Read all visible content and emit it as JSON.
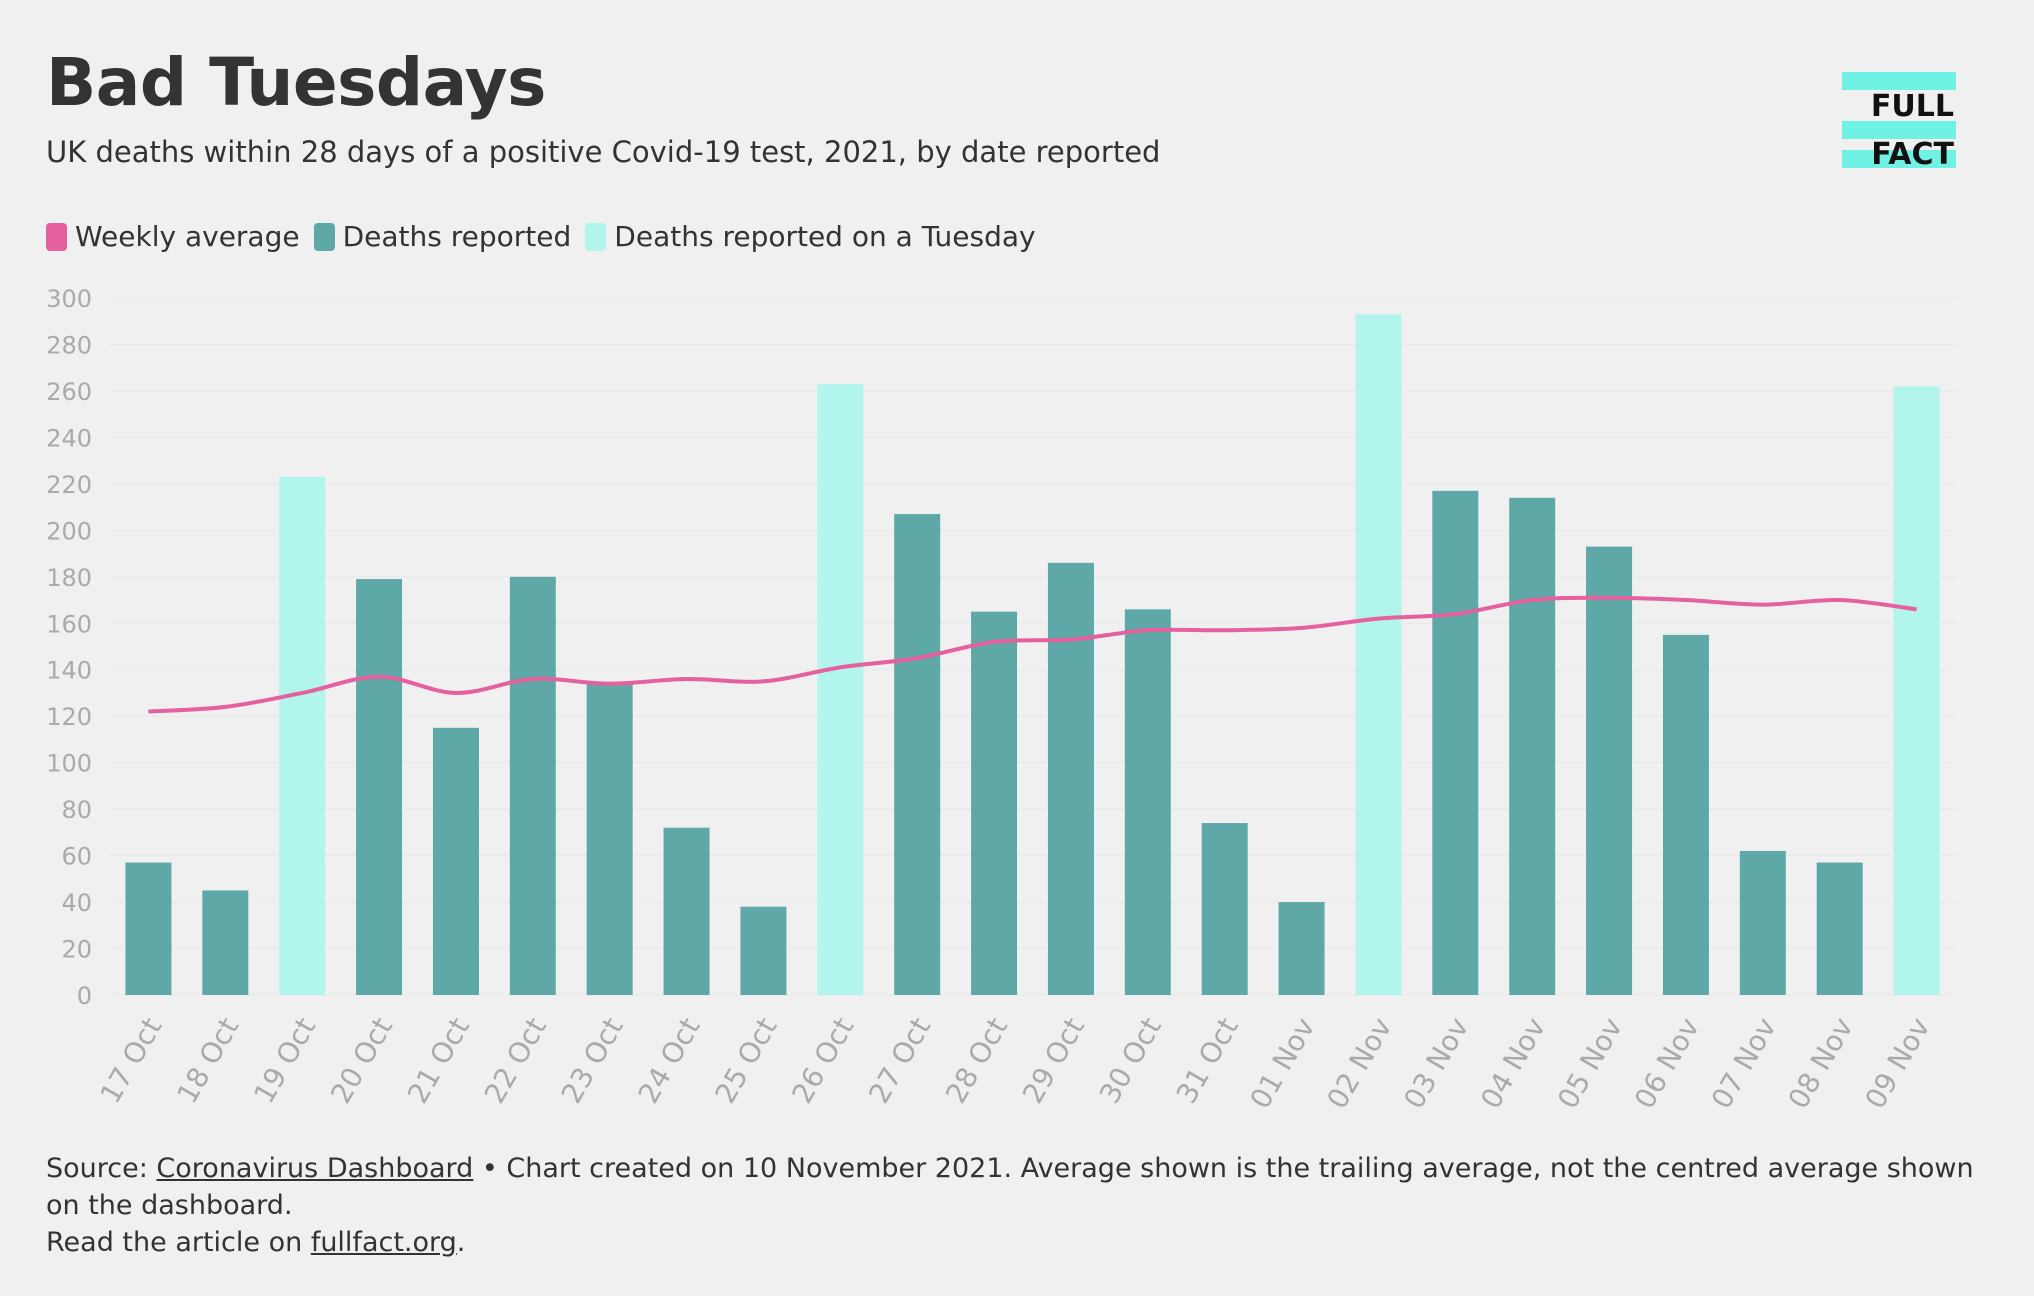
{
  "header": {
    "title": "Bad Tuesdays",
    "subtitle": "UK deaths within 28 days of a positive Covid-19 test, 2021, by date reported"
  },
  "logo": {
    "line1": "FULL",
    "line2": "FACT",
    "color": "#6ff2e3"
  },
  "legend": [
    {
      "label": "Weekly average",
      "color": "#e5609e"
    },
    {
      "label": "Deaths reported",
      "color": "#5ea8a7"
    },
    {
      "label": "Deaths reported on a Tuesday",
      "color": "#b2f5ed"
    }
  ],
  "footer": {
    "source_prefix": "Source: ",
    "source_link": "Coronavirus Dashboard",
    "source_rest": " • Chart created on 10 November 2021. Average shown is the trailing average, not the centred average shown on the dashboard.",
    "read_prefix": "Read the article on ",
    "read_link": "fullfact.org",
    "read_suffix": "."
  },
  "chart_data": {
    "type": "bar",
    "categories": [
      "17 Oct",
      "18 Oct",
      "19 Oct",
      "20 Oct",
      "21 Oct",
      "22 Oct",
      "23 Oct",
      "24 Oct",
      "25 Oct",
      "26 Oct",
      "27 Oct",
      "28 Oct",
      "29 Oct",
      "30 Oct",
      "31 Oct",
      "01 Nov",
      "02 Nov",
      "03 Nov",
      "04 Nov",
      "05 Nov",
      "06 Nov",
      "07 Nov",
      "08 Nov",
      "09 Nov"
    ],
    "series": [
      {
        "name": "Deaths reported",
        "type": "bar",
        "values": [
          57,
          45,
          223,
          179,
          115,
          180,
          134,
          72,
          38,
          263,
          207,
          165,
          186,
          166,
          74,
          40,
          293,
          217,
          214,
          193,
          155,
          62,
          57,
          262
        ],
        "tuesday": [
          false,
          false,
          true,
          false,
          false,
          false,
          false,
          false,
          false,
          true,
          false,
          false,
          false,
          false,
          false,
          false,
          true,
          false,
          false,
          false,
          false,
          false,
          false,
          true
        ]
      },
      {
        "name": "Weekly average",
        "type": "line",
        "values": [
          122,
          124,
          130,
          137,
          130,
          136,
          134,
          136,
          135,
          141,
          145,
          152,
          153,
          157,
          157,
          158,
          162,
          164,
          170,
          171,
          170,
          168,
          170,
          166
        ]
      }
    ],
    "ylim": [
      0,
      300
    ],
    "yticks": [
      0,
      20,
      40,
      60,
      80,
      100,
      120,
      140,
      160,
      180,
      200,
      220,
      240,
      260,
      280,
      300
    ],
    "colors": {
      "bar": "#5ea8a7",
      "tuesday": "#b2f5ed",
      "line": "#e5609e",
      "tick": "#aaaaaa",
      "grid": "#e8e8e8"
    },
    "grid": true,
    "legend_position": "top-left"
  }
}
